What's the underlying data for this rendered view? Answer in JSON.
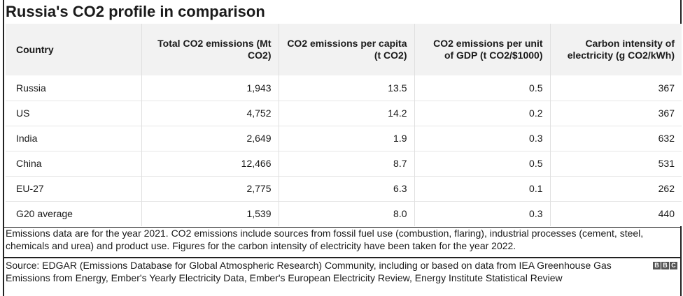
{
  "title": "Russia's CO2 profile in comparison",
  "table": {
    "headers": [
      "Country",
      "Total CO2 emissions (Mt CO2)",
      "CO2 emissions per capita (t CO2)",
      "CO2 emissions per unit of GDP (t CO2/$1000)",
      "Carbon intensity of electricity (g CO2/kWh)"
    ],
    "rows": [
      [
        "Russia",
        "1,943",
        "13.5",
        "0.5",
        "367"
      ],
      [
        "US",
        "4,752",
        "14.2",
        "0.2",
        "367"
      ],
      [
        "India",
        "2,649",
        "1.9",
        "0.3",
        "632"
      ],
      [
        "China",
        "12,466",
        "8.7",
        "0.5",
        "531"
      ],
      [
        "EU-27",
        "2,775",
        "6.3",
        "0.1",
        "262"
      ],
      [
        "G20 average",
        "1,539",
        "8.0",
        "0.3",
        "440"
      ]
    ]
  },
  "note": "Emissions data are for the year 2021. CO2 emissions include sources from fossil fuel use (combustion, flaring), industrial processes (cement, steel, chemicals and urea) and product use. Figures for the carbon intensity of electricity have been taken for the year 2022.",
  "source": "Source: EDGAR (Emissions Database for Global Atmospheric Research) Community, including or based on data from IEA Greenhouse Gas Emissions from Energy, Ember's Yearly Electricity Data, Ember's European Electricity Review, Energy Institute Statistical Review",
  "logo": [
    "B",
    "B",
    "C"
  ]
}
